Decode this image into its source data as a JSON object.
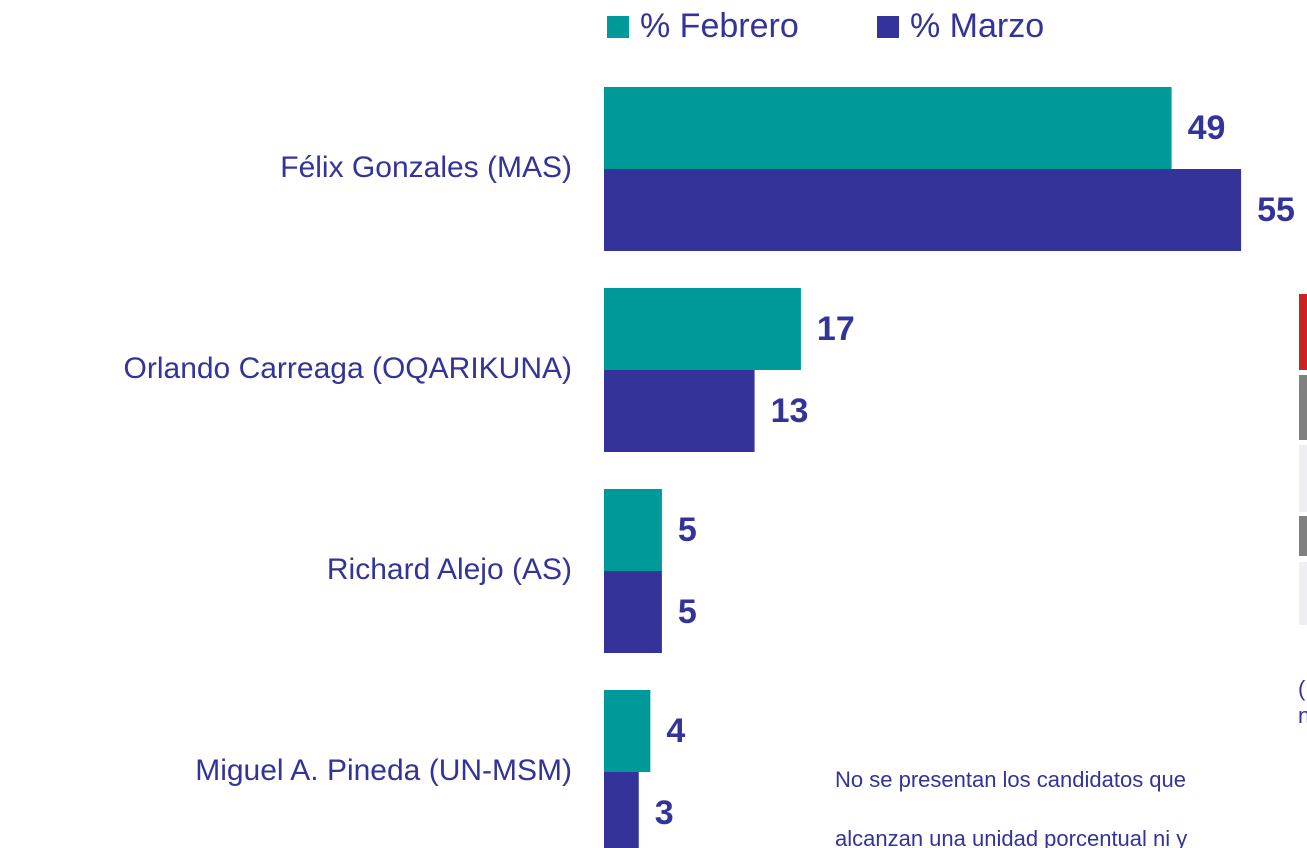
{
  "chart_data": {
    "type": "bar",
    "orientation": "horizontal",
    "categories": [
      "Félix Gonzales (MAS)",
      "Orlando Carreaga (OQARIKUNA)",
      "Richard Alejo (AS)",
      "Miguel A. Pineda (UN-MSM)"
    ],
    "series": [
      {
        "name": "% Febrero",
        "color": "#009999",
        "values": [
          49,
          17,
          5,
          4
        ]
      },
      {
        "name": "% Marzo",
        "color": "#333399",
        "values": [
          55,
          13,
          5,
          3
        ]
      }
    ],
    "xlim": [
      0,
      60
    ],
    "legend": "top",
    "annotations": [
      "No se presentan los candidatos que",
      "alcanzan una unidad porcentual ni y",
      "(",
      "n"
    ]
  }
}
